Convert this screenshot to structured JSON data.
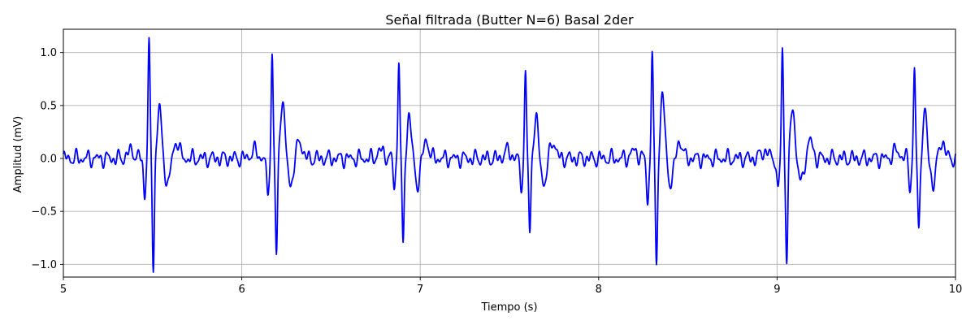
{
  "chart_data": {
    "type": "line",
    "title": "Señal filtrada (Butter N=6) Basal 2der",
    "xlabel": "Tiempo (s)",
    "ylabel": "Amplitud (mV)",
    "xlim": [
      5,
      10
    ],
    "ylim": [
      -1.12,
      1.22
    ],
    "xticks": [
      5,
      6,
      7,
      8,
      9,
      10
    ],
    "xtick_labels": [
      "5",
      "6",
      "7",
      "8",
      "9",
      "10"
    ],
    "yticks": [
      -1.0,
      -0.5,
      0.0,
      0.5,
      1.0
    ],
    "ytick_labels": [
      "−1.0",
      "−0.5",
      "0.0",
      "0.5",
      "1.0"
    ],
    "grid": true,
    "series": [
      {
        "color": "#0000ff",
        "beats": [
          {
            "t": 5.48,
            "q": -0.34,
            "r": 1.1,
            "s": -1.01,
            "t_wave": 0.49
          },
          {
            "t": 6.17,
            "q": -0.38,
            "r": 0.98,
            "s": -0.93,
            "t_wave": 0.59
          },
          {
            "t": 6.88,
            "q": -0.27,
            "r": 0.95,
            "s": -0.84,
            "t_wave": 0.42
          },
          {
            "t": 7.59,
            "q": -0.28,
            "r": 0.79,
            "s": -0.72,
            "t_wave": 0.4
          },
          {
            "t": 8.3,
            "q": -0.42,
            "r": 1.0,
            "s": -0.99,
            "t_wave": 0.62
          },
          {
            "t": 9.03,
            "q": -0.33,
            "r": 1.02,
            "s": -0.95,
            "t_wave": 0.5
          },
          {
            "t": 9.77,
            "q": -0.27,
            "r": 0.82,
            "s": -0.71,
            "t_wave": 0.44
          }
        ]
      }
    ]
  }
}
